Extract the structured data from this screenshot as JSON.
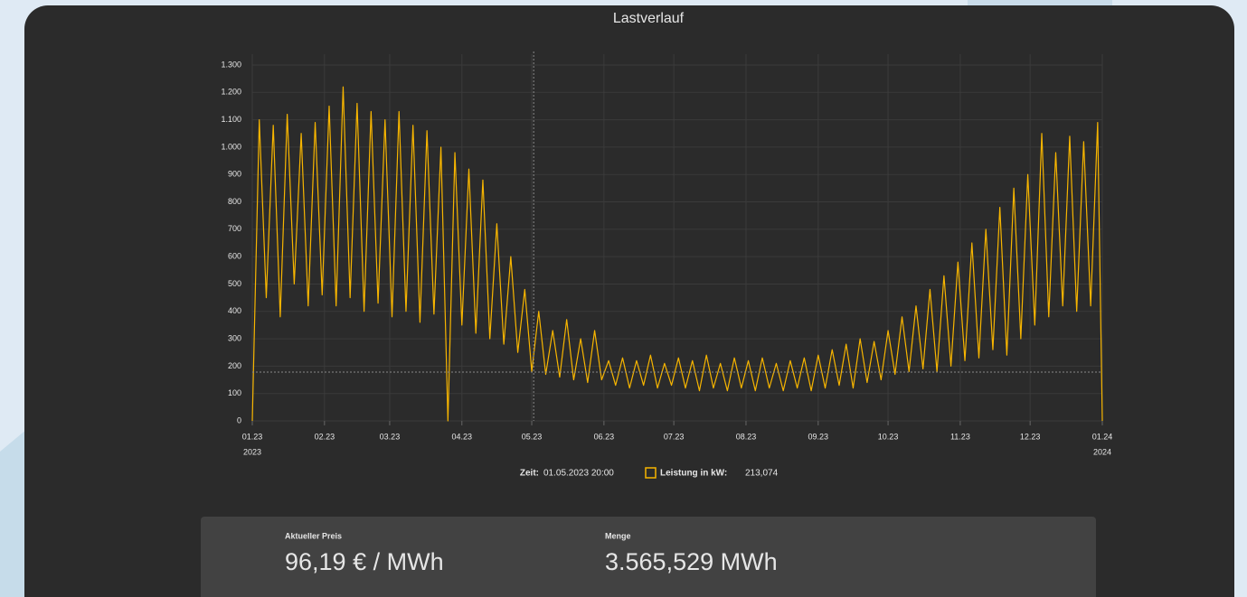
{
  "chart_data": {
    "type": "line",
    "title": "Lastverlauf",
    "x": [
      0,
      3,
      6,
      9,
      12,
      15,
      18,
      21,
      24,
      27,
      30,
      33,
      36,
      39,
      42,
      45,
      48,
      51,
      54,
      57,
      60,
      63,
      66,
      69,
      72,
      75,
      78,
      81,
      84,
      87,
      90,
      93,
      96,
      99,
      102,
      105,
      108,
      111,
      114,
      117,
      120,
      123,
      126,
      129,
      132,
      135,
      138,
      141,
      144,
      147,
      150,
      153,
      156,
      159,
      162,
      165,
      168,
      171,
      174,
      177,
      180,
      183,
      186,
      189,
      192,
      195,
      198,
      201,
      204,
      207,
      210,
      213,
      216,
      219,
      222,
      225,
      228,
      231,
      234,
      237,
      240,
      243,
      246,
      249,
      252,
      255,
      258,
      261,
      264,
      267,
      270,
      273,
      276,
      279,
      282,
      285,
      288,
      291,
      294,
      297,
      300,
      303,
      306,
      309,
      312,
      315,
      318,
      321,
      324,
      327,
      330,
      333,
      336,
      339,
      342,
      345,
      348,
      351,
      354,
      357,
      360,
      363,
      365
    ],
    "series": [
      {
        "name": "Leistung in kW:",
        "color": "#f7b500",
        "values": [
          0,
          1100,
          450,
          1080,
          380,
          1120,
          500,
          1050,
          420,
          1090,
          460,
          1150,
          420,
          1220,
          450,
          1160,
          400,
          1130,
          430,
          1100,
          380,
          1130,
          400,
          1080,
          360,
          1060,
          390,
          1000,
          0,
          980,
          350,
          920,
          320,
          880,
          300,
          720,
          280,
          600,
          250,
          480,
          180,
          400,
          170,
          330,
          160,
          370,
          150,
          300,
          140,
          330,
          150,
          220,
          130,
          230,
          120,
          220,
          130,
          240,
          120,
          210,
          130,
          230,
          120,
          220,
          110,
          240,
          120,
          210,
          110,
          230,
          120,
          220,
          110,
          230,
          120,
          210,
          110,
          220,
          120,
          230,
          110,
          240,
          120,
          260,
          130,
          280,
          120,
          300,
          140,
          290,
          150,
          330,
          170,
          380,
          180,
          420,
          190,
          480,
          180,
          530,
          200,
          580,
          220,
          650,
          230,
          700,
          260,
          780,
          240,
          850,
          300,
          900,
          350,
          1050,
          380,
          980,
          420,
          1040,
          400,
          1020,
          420,
          1090,
          0
        ]
      }
    ],
    "xlim": [
      0,
      365
    ],
    "xticks": [
      {
        "value": 0,
        "label": "01.23"
      },
      {
        "value": 31,
        "label": "02.23"
      },
      {
        "value": 59,
        "label": "03.23"
      },
      {
        "value": 90,
        "label": "04.23"
      },
      {
        "value": 120,
        "label": "05.23"
      },
      {
        "value": 151,
        "label": "06.23"
      },
      {
        "value": 181,
        "label": "07.23"
      },
      {
        "value": 212,
        "label": "08.23"
      },
      {
        "value": 243,
        "label": "09.23"
      },
      {
        "value": 273,
        "label": "10.23"
      },
      {
        "value": 304,
        "label": "11.23"
      },
      {
        "value": 334,
        "label": "12.23"
      },
      {
        "value": 365,
        "label": "01.24"
      }
    ],
    "x_sublabels": [
      {
        "value": 0,
        "label": "2023"
      },
      {
        "value": 365,
        "label": "2024"
      }
    ],
    "ylim": [
      0,
      1300
    ],
    "yticks": [
      0,
      100,
      200,
      300,
      400,
      500,
      600,
      700,
      800,
      900,
      {
        "value": 1000,
        "label": "1.000"
      },
      {
        "value": 1100,
        "label": "1.100"
      },
      {
        "value": 1200,
        "label": "1.200"
      },
      {
        "value": 1300,
        "label": "1.300"
      }
    ],
    "grid": true,
    "crosshair": {
      "x": 120.83,
      "y": 178
    }
  },
  "tooltip": {
    "time_label": "Zeit:",
    "time": "01.05.2023 20:00",
    "value": "213,074"
  },
  "stats": [
    {
      "label": "Aktueller Preis",
      "value": "96,19 € / MWh"
    },
    {
      "label": "Menge",
      "value": "3.565,529 MWh"
    }
  ]
}
